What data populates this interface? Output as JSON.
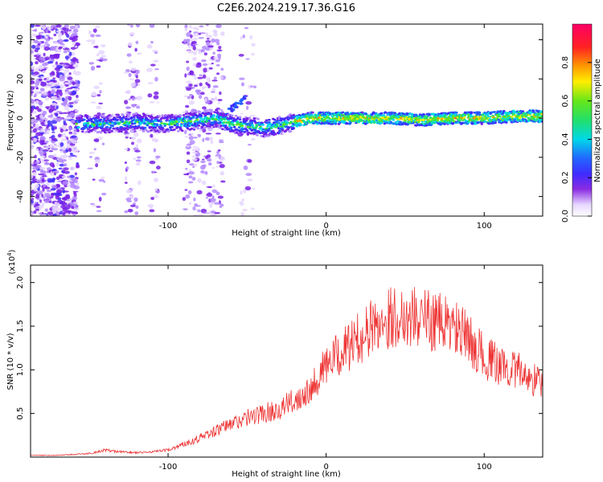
{
  "title": "C2E6.2024.219.17.36.G16",
  "chart_data": [
    {
      "type": "heatmap",
      "xlabel": "Height of straight line (km)",
      "ylabel": "Frequency (Hz)",
      "xlim": [
        -187,
        137
      ],
      "ylim": [
        -50,
        48
      ],
      "x_ticks": [
        -100,
        0,
        100
      ],
      "x_tick_labels": [
        "-100",
        "0",
        "100"
      ],
      "y_ticks": [
        -40,
        -20,
        0,
        20,
        40
      ],
      "y_tick_labels": [
        "-40",
        "-20",
        "0",
        "20",
        "40"
      ],
      "colorbar": {
        "label": "Normalized spectral amplitude",
        "range": [
          0,
          1
        ],
        "ticks": [
          0.0,
          0.2,
          0.4,
          0.6,
          0.8
        ],
        "tick_labels": [
          "0.0",
          "0.2",
          "0.4",
          "0.6",
          "0.8"
        ]
      },
      "ridge": {
        "x": [
          -155,
          -140,
          -120,
          -100,
          -90,
          -80,
          -70,
          -60,
          -50,
          -40,
          -30,
          -20,
          -10,
          0,
          20,
          40,
          60,
          80,
          100,
          120,
          135
        ],
        "frequency": [
          -3,
          -3,
          -2,
          -3,
          -2,
          -1,
          0,
          -3,
          -4,
          -5,
          -4,
          -2,
          0,
          0,
          0,
          0,
          -1,
          0,
          0,
          1,
          1
        ]
      },
      "grid": false
    },
    {
      "type": "line",
      "xlabel": "Height of straight line (km)",
      "ylabel": "SNR (10 * v/v)",
      "y_scale_label": "(x10",
      "y_scale_exponent": "4",
      "xlim": [
        -187,
        137
      ],
      "ylim": [
        0,
        2.2
      ],
      "x_ticks": [
        -100,
        0,
        100
      ],
      "x_tick_labels": [
        "-100",
        "0",
        "100"
      ],
      "y_ticks": [
        0.5,
        1.0,
        1.5,
        2.0
      ],
      "y_tick_labels": [
        "0.5",
        "1.0",
        "1.5",
        "2.0"
      ],
      "color": "#ee3333",
      "series": [
        {
          "x": [
            -187,
            -170,
            -150,
            -140,
            -130,
            -120,
            -110,
            -100,
            -90,
            -80,
            -70,
            -60,
            -50,
            -40,
            -30,
            -20,
            -10,
            0,
            10,
            20,
            30,
            40,
            50,
            60,
            70,
            80,
            90,
            100,
            110,
            120,
            130,
            137
          ],
          "y": [
            0.02,
            0.02,
            0.04,
            0.08,
            0.06,
            0.05,
            0.06,
            0.08,
            0.15,
            0.22,
            0.3,
            0.38,
            0.45,
            0.5,
            0.55,
            0.65,
            0.8,
            1.05,
            1.2,
            1.35,
            1.5,
            1.6,
            1.62,
            1.6,
            1.55,
            1.5,
            1.35,
            1.15,
            1.05,
            1.0,
            0.9,
            0.85
          ]
        }
      ],
      "grid": false
    }
  ]
}
